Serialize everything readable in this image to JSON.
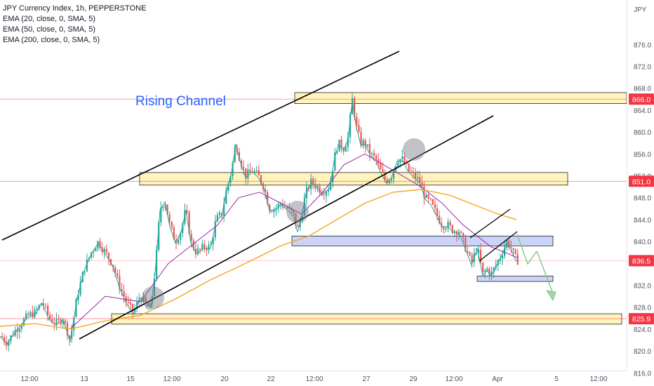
{
  "legend": {
    "title": "JPY Currency Index, 1h, PEPPERSTONE",
    "ema20": "EMA (20, close, 0, SMA, 5)",
    "ema50": "EMA (50, close, 0, SMA, 5)",
    "ema200": "EMA (200, close, 0, SMA, 5)"
  },
  "annotation": {
    "text": "Rising Channel",
    "color": "#2962ff"
  },
  "chart_data": {
    "type": "candlestick",
    "currency_label": "JPY",
    "y_ticks": [
      816.0,
      820.0,
      824.0,
      828.0,
      832.0,
      836.0,
      840.0,
      844.0,
      848.0,
      852.0,
      856.0,
      860.0,
      864.0,
      868.0,
      872.0,
      876.0
    ],
    "ylim": [
      814.0,
      878.0
    ],
    "x_ticks": [
      "12:00",
      "13",
      "15",
      "12:00",
      "20",
      "22",
      "12:00",
      "27",
      "29",
      "12:00",
      "Apr",
      "5",
      "12:00"
    ],
    "price_labels": [
      {
        "value": "866.0",
        "price": 866.0
      },
      {
        "value": "851.0",
        "price": 851.0
      },
      {
        "value": "836.5",
        "price": 836.5
      },
      {
        "value": "825.9",
        "price": 825.9
      }
    ],
    "zones": [
      {
        "name": "resistance-top",
        "from": 865.2,
        "to": 867.2,
        "color": "#fff2b3"
      },
      {
        "name": "resistance-mid",
        "from": 850.3,
        "to": 852.6,
        "color": "#fff2b3"
      },
      {
        "name": "support-blue-upper",
        "from": 839.2,
        "to": 841.0,
        "color": "#c2cdf7"
      },
      {
        "name": "support-blue-lower",
        "from": 832.7,
        "to": 833.7,
        "color": "#c2cdf7"
      },
      {
        "name": "support-bottom",
        "from": 824.9,
        "to": 826.8,
        "color": "#fff2b3"
      }
    ],
    "series": [
      {
        "name": "EMA 20",
        "color": "#26a69a"
      },
      {
        "name": "EMA 50",
        "color": "#9c27b0"
      },
      {
        "name": "EMA 200",
        "color": "#f5a623"
      }
    ],
    "colors": {
      "up": "#26a69a",
      "down": "#ef5350",
      "price_label": "#f23645"
    }
  }
}
